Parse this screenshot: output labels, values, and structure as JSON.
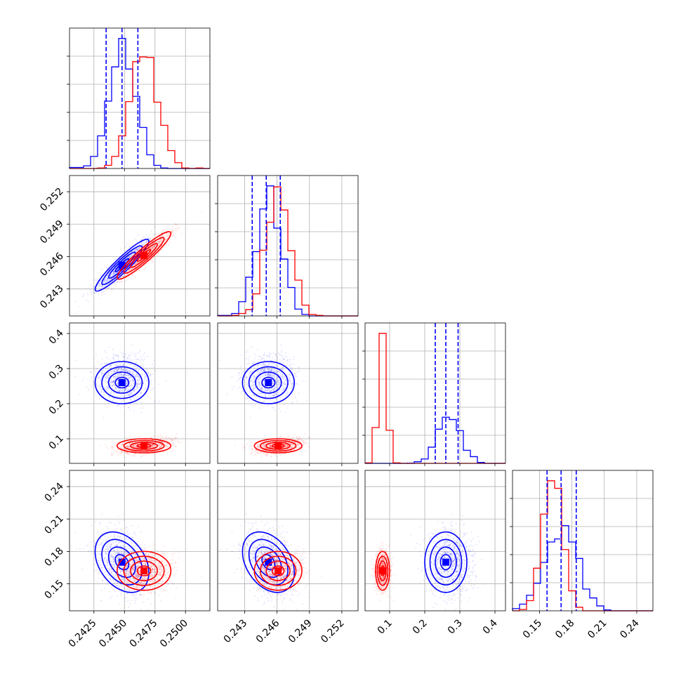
{
  "colors": {
    "blue": "#0000ff",
    "red": "#ff0000"
  },
  "chart_data": {
    "type": "corner",
    "grid": true,
    "series": [
      {
        "color": "#0000ff",
        "means": [
          0.2448,
          0.2452,
          0.26,
          0.17
        ],
        "sds": [
          0.0011,
          0.0012,
          0.03,
          0.014
        ],
        "corr_01": 0.93
      },
      {
        "color": "#ff0000",
        "means": [
          0.2466,
          0.2461,
          0.08,
          0.162
        ],
        "sds": [
          0.0011,
          0.0011,
          0.01,
          0.009
        ],
        "corr_01": 0.93
      }
    ],
    "quantiles": [
      [
        0.2435,
        0.2448,
        0.2461
      ],
      [
        0.2437,
        0.245,
        0.2463
      ],
      [
        0.23,
        0.26,
        0.295
      ],
      [
        0.157,
        0.17,
        0.184
      ]
    ],
    "ranges": [
      [
        0.2405,
        0.252
      ],
      [
        0.2405,
        0.2535
      ],
      [
        0.03,
        0.43
      ],
      [
        0.125,
        0.255
      ]
    ],
    "ticks": [
      {
        "values": [
          0.2425,
          0.245,
          0.2475,
          0.25
        ],
        "labels": [
          "0.2425",
          "0.2450",
          "0.2475",
          "0.2500"
        ]
      },
      {
        "values": [
          0.243,
          0.246,
          0.249,
          0.252
        ],
        "labels": [
          "0.243",
          "0.246",
          "0.249",
          "0.252"
        ]
      },
      {
        "values": [
          0.1,
          0.2,
          0.3,
          0.4
        ],
        "labels": [
          "0.1",
          "0.2",
          "0.3",
          "0.4"
        ]
      },
      {
        "values": [
          0.15,
          0.18,
          0.21,
          0.24
        ],
        "labels": [
          "0.15",
          "0.18",
          "0.21",
          "0.24"
        ]
      }
    ],
    "contour_levels_sigma": [
      0.5,
      1.0,
      1.5,
      2.0
    ]
  }
}
